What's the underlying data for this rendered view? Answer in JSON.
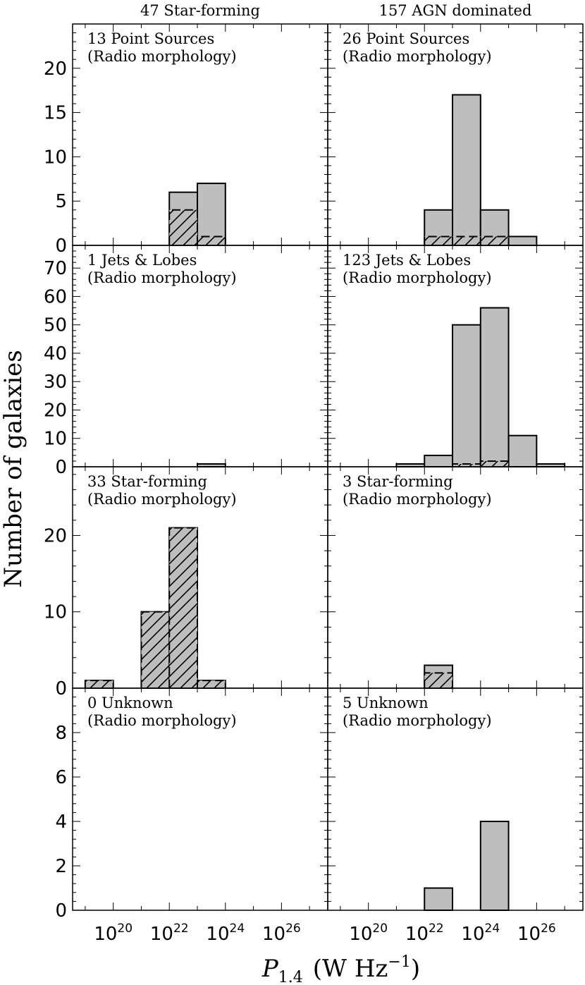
{
  "column_titles": [
    "47 Star-forming",
    "157 AGN dominated"
  ],
  "y_axis_label": "Number of galaxies",
  "x_axis_label": {
    "symbol": "P",
    "subscript": "1.4",
    "units_prefix": "(W Hz",
    "units_exponent": "−1",
    "units_suffix": ")"
  },
  "panel_subtitle": "(Radio morphology)",
  "x_ticks": [
    {
      "base": "10",
      "exp": "20",
      "log": 20
    },
    {
      "base": "10",
      "exp": "22",
      "log": 22
    },
    {
      "base": "10",
      "exp": "24",
      "log": 24
    },
    {
      "base": "10",
      "exp": "26",
      "log": 26
    }
  ],
  "chart_data": {
    "type": "bar",
    "title": "",
    "xlabel": "P_1.4 (W Hz^-1)",
    "ylabel": "Number of galaxies",
    "x_scale": "log10",
    "xlim_log": [
      18.6,
      27.6
    ],
    "bin_width_log": 1.0,
    "bin_edges_log": [
      19,
      20,
      21,
      22,
      23,
      24,
      25,
      26,
      27
    ],
    "rows": [
      {
        "ylim": [
          0,
          25
        ],
        "yticks": [
          0,
          5,
          10,
          15,
          20
        ],
        "panels": [
          {
            "label": "13 Point Sources",
            "series": [
              {
                "name": "total",
                "pattern": "solid",
                "bins": [
                  {
                    "x0": 22,
                    "x1": 23,
                    "value": 6
                  },
                  {
                    "x0": 23,
                    "x1": 24,
                    "value": 7
                  }
                ]
              },
              {
                "name": "hatched",
                "pattern": "hatch",
                "bins": [
                  {
                    "x0": 22,
                    "x1": 23,
                    "value": 4
                  },
                  {
                    "x0": 23,
                    "x1": 24,
                    "value": 1
                  }
                ]
              }
            ]
          },
          {
            "label": "26 Point Sources",
            "series": [
              {
                "name": "total",
                "pattern": "solid",
                "bins": [
                  {
                    "x0": 22,
                    "x1": 23,
                    "value": 4
                  },
                  {
                    "x0": 23,
                    "x1": 24,
                    "value": 17
                  },
                  {
                    "x0": 24,
                    "x1": 25,
                    "value": 4
                  },
                  {
                    "x0": 25,
                    "x1": 26,
                    "value": 1
                  }
                ]
              },
              {
                "name": "hatched",
                "pattern": "hatch",
                "bins": [
                  {
                    "x0": 22,
                    "x1": 23,
                    "value": 1
                  },
                  {
                    "x0": 23,
                    "x1": 24,
                    "value": 1
                  },
                  {
                    "x0": 24,
                    "x1": 25,
                    "value": 1
                  }
                ]
              }
            ]
          }
        ]
      },
      {
        "ylim": [
          0,
          78
        ],
        "yticks": [
          0,
          10,
          20,
          30,
          40,
          50,
          60,
          70
        ],
        "panels": [
          {
            "label": "1 Jets & Lobes",
            "series": [
              {
                "name": "total",
                "pattern": "solid",
                "bins": [
                  {
                    "x0": 23,
                    "x1": 24,
                    "value": 1
                  }
                ]
              },
              {
                "name": "hatched",
                "pattern": "hatch",
                "bins": []
              }
            ]
          },
          {
            "label": "123 Jets & Lobes",
            "series": [
              {
                "name": "total",
                "pattern": "solid",
                "bins": [
                  {
                    "x0": 21,
                    "x1": 22,
                    "value": 1
                  },
                  {
                    "x0": 22,
                    "x1": 23,
                    "value": 4
                  },
                  {
                    "x0": 23,
                    "x1": 24,
                    "value": 50
                  },
                  {
                    "x0": 24,
                    "x1": 25,
                    "value": 56
                  },
                  {
                    "x0": 25,
                    "x1": 26,
                    "value": 11
                  },
                  {
                    "x0": 26,
                    "x1": 27,
                    "value": 1
                  }
                ]
              },
              {
                "name": "hatched",
                "pattern": "hatch",
                "bins": [
                  {
                    "x0": 23,
                    "x1": 24,
                    "value": 1
                  },
                  {
                    "x0": 24,
                    "x1": 25,
                    "value": 2
                  }
                ]
              }
            ]
          }
        ]
      },
      {
        "ylim": [
          0,
          29
        ],
        "yticks": [
          0,
          10,
          20
        ],
        "panels": [
          {
            "label": "33 Star-forming",
            "series": [
              {
                "name": "total",
                "pattern": "solid",
                "bins": [
                  {
                    "x0": 19,
                    "x1": 20,
                    "value": 1
                  },
                  {
                    "x0": 21,
                    "x1": 22,
                    "value": 10
                  },
                  {
                    "x0": 22,
                    "x1": 23,
                    "value": 21
                  },
                  {
                    "x0": 23,
                    "x1": 24,
                    "value": 1
                  }
                ]
              },
              {
                "name": "hatched",
                "pattern": "hatch",
                "bins": [
                  {
                    "x0": 19,
                    "x1": 20,
                    "value": 1
                  },
                  {
                    "x0": 21,
                    "x1": 22,
                    "value": 10
                  },
                  {
                    "x0": 22,
                    "x1": 23,
                    "value": 21
                  },
                  {
                    "x0": 23,
                    "x1": 24,
                    "value": 1
                  }
                ]
              }
            ]
          },
          {
            "label": "3 Star-forming",
            "series": [
              {
                "name": "total",
                "pattern": "solid",
                "bins": [
                  {
                    "x0": 22,
                    "x1": 23,
                    "value": 3
                  }
                ]
              },
              {
                "name": "hatched",
                "pattern": "hatch",
                "bins": [
                  {
                    "x0": 22,
                    "x1": 23,
                    "value": 2
                  }
                ]
              }
            ]
          }
        ]
      },
      {
        "ylim": [
          0,
          10
        ],
        "yticks": [
          0,
          2,
          4,
          6,
          8
        ],
        "panels": [
          {
            "label": "0 Unknown",
            "series": [
              {
                "name": "total",
                "pattern": "solid",
                "bins": []
              },
              {
                "name": "hatched",
                "pattern": "hatch",
                "bins": []
              }
            ]
          },
          {
            "label": "5 Unknown",
            "series": [
              {
                "name": "total",
                "pattern": "solid",
                "bins": [
                  {
                    "x0": 22,
                    "x1": 23,
                    "value": 1
                  },
                  {
                    "x0": 24,
                    "x1": 25,
                    "value": 4
                  }
                ]
              },
              {
                "name": "hatched",
                "pattern": "hatch",
                "bins": []
              }
            ]
          }
        ]
      }
    ]
  }
}
